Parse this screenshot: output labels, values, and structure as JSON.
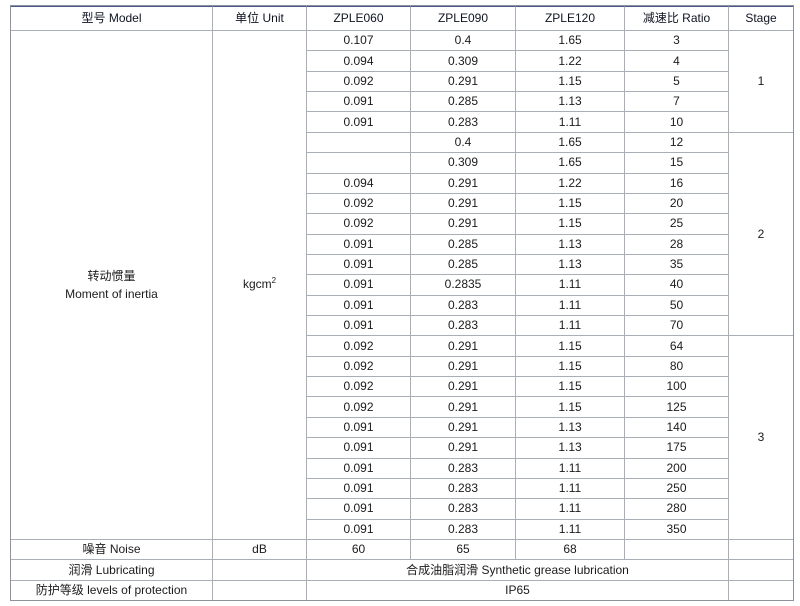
{
  "table": {
    "columns": [
      "型号 Model",
      "单位 Unit",
      "ZPLE060",
      "ZPLE090",
      "ZPLE120",
      "减速比 Ratio",
      "Stage"
    ]
  },
  "inertia": {
    "label_zh": "转动惯量",
    "label_en": "Moment of inertia",
    "unit_base": "kgcm",
    "unit_sup": "2",
    "stages": [
      {
        "stage": "1",
        "rows": [
          [
            "0.107",
            "0.4",
            "1.65",
            "3"
          ],
          [
            "0.094",
            "0.309",
            "1.22",
            "4"
          ],
          [
            "0.092",
            "0.291",
            "1.15",
            "5"
          ],
          [
            "0.091",
            "0.285",
            "1.13",
            "7"
          ],
          [
            "0.091",
            "0.283",
            "1.11",
            "10"
          ]
        ]
      },
      {
        "stage": "2",
        "rows": [
          [
            "",
            "0.4",
            "1.65",
            "12"
          ],
          [
            "",
            "0.309",
            "1.65",
            "15"
          ],
          [
            "0.094",
            "0.291",
            "1.22",
            "16"
          ],
          [
            "0.092",
            "0.291",
            "1.15",
            "20"
          ],
          [
            "0.092",
            "0.291",
            "1.15",
            "25"
          ],
          [
            "0.091",
            "0.285",
            "1.13",
            "28"
          ],
          [
            "0.091",
            "0.285",
            "1.13",
            "35"
          ],
          [
            "0.091",
            "0.2835",
            "1.11",
            "40"
          ],
          [
            "0.091",
            "0.283",
            "1.11",
            "50"
          ],
          [
            "0.091",
            "0.283",
            "1.11",
            "70"
          ]
        ]
      },
      {
        "stage": "3",
        "rows": [
          [
            "0.092",
            "0.291",
            "1.15",
            "64"
          ],
          [
            "0.092",
            "0.291",
            "1.15",
            "80"
          ],
          [
            "0.092",
            "0.291",
            "1.15",
            "100"
          ],
          [
            "0.092",
            "0.291",
            "1.15",
            "125"
          ],
          [
            "0.091",
            "0.291",
            "1.13",
            "140"
          ],
          [
            "0.091",
            "0.291",
            "1.13",
            "175"
          ],
          [
            "0.091",
            "0.283",
            "1.11",
            "200"
          ],
          [
            "0.091",
            "0.283",
            "1.11",
            "250"
          ],
          [
            "0.091",
            "0.283",
            "1.11",
            "280"
          ],
          [
            "0.091",
            "0.283",
            "1.11",
            "350"
          ]
        ]
      }
    ]
  },
  "noise": {
    "label": "噪音 Noise",
    "unit": "dB",
    "values": [
      "60",
      "65",
      "68"
    ]
  },
  "lubricating": {
    "label": "润滑 Lubricating",
    "value": "合成油脂润滑 Synthetic grease lubrication"
  },
  "protection": {
    "label": "防护等级 levels of protection",
    "value": "IP65"
  },
  "colors": {
    "header_bg": "#56669a",
    "stripe_bg": "#e7ecf7",
    "grid_border": "#a9aeb8",
    "outer_border": "#8d939e"
  }
}
